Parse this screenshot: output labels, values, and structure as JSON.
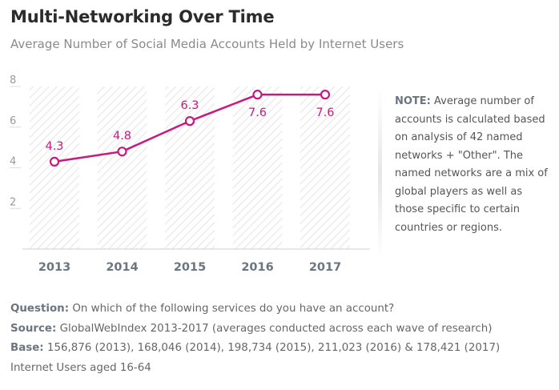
{
  "header": {
    "title": "Multi-Networking Over Time",
    "subtitle": "Average Number of Social Media Accounts Held by Internet Users"
  },
  "note": {
    "label": "NOTE:",
    "text": "Average number of accounts is calculated based on analysis of 42 named networks + \"Other\". The named networks are a mix of global players as well as those specific to certain countries or regions."
  },
  "footer": {
    "question_label": "Question:",
    "question_text": "On which of the following services do you have an account?",
    "source_label": "Source:",
    "source_text": "GlobalWebIndex 2013-2017 (averages conducted across each wave of research)",
    "base_label": "Base:",
    "base_text": "156,876 (2013), 168,046 (2014), 198,734 (2015), 211,023 (2016) & 178,421 (2017)",
    "base_line2": "Internet Users aged 16-64"
  },
  "colors": {
    "line": "#c8197e",
    "axis_text": "#6b7580",
    "hatch": "#e8e8e8"
  },
  "chart_data": {
    "type": "line",
    "categories": [
      "2013",
      "2014",
      "2015",
      "2016",
      "2017"
    ],
    "values": [
      4.3,
      4.8,
      6.3,
      7.6,
      7.6
    ],
    "data_labels": [
      "4.3",
      "4.8",
      "6.3",
      "7.6",
      "7.6"
    ],
    "ylim": [
      0,
      8
    ],
    "yticks": [
      "2",
      "4",
      "6",
      "8"
    ],
    "grid": false,
    "column_background": "hatched",
    "xlabel": "",
    "ylabel": ""
  }
}
